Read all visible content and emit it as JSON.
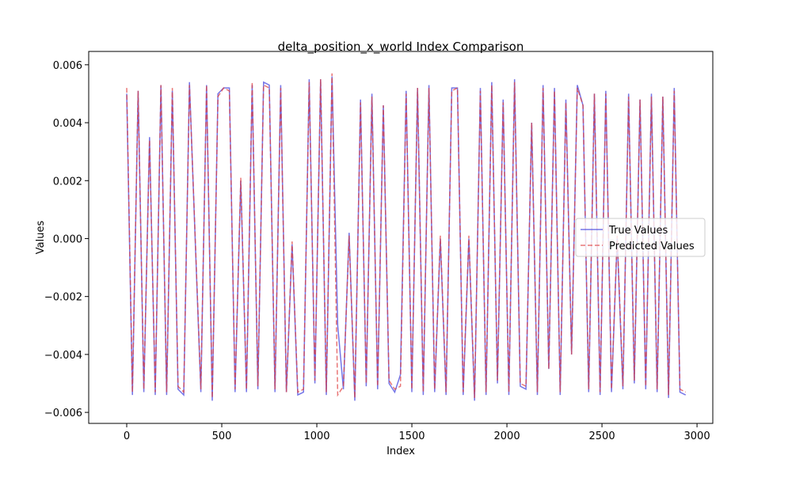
{
  "chart_data": {
    "type": "line",
    "title": "delta_position_x_world Index Comparison",
    "xlabel": "Index",
    "ylabel": "Values",
    "x": [
      0,
      30,
      60,
      90,
      120,
      150,
      180,
      210,
      240,
      270,
      300,
      330,
      360,
      390,
      420,
      450,
      480,
      510,
      540,
      570,
      600,
      630,
      660,
      690,
      720,
      750,
      780,
      810,
      840,
      870,
      900,
      930,
      960,
      990,
      1020,
      1050,
      1080,
      1110,
      1140,
      1170,
      1200,
      1230,
      1260,
      1290,
      1320,
      1350,
      1380,
      1410,
      1440,
      1470,
      1500,
      1530,
      1560,
      1590,
      1620,
      1650,
      1680,
      1710,
      1740,
      1770,
      1800,
      1830,
      1860,
      1890,
      1920,
      1950,
      1980,
      2010,
      2040,
      2070,
      2100,
      2130,
      2160,
      2190,
      2220,
      2250,
      2280,
      2310,
      2340,
      2370,
      2400,
      2430,
      2460,
      2490,
      2520,
      2550,
      2580,
      2610,
      2640,
      2670,
      2700,
      2730,
      2760,
      2790,
      2820,
      2850,
      2880,
      2910,
      2940
    ],
    "series": [
      {
        "name": "True Values",
        "color": "#3b3bdd",
        "dash": false,
        "values": [
          0.005,
          -0.0054,
          0.0051,
          -0.0053,
          0.0035,
          -0.0054,
          0.0053,
          -0.0054,
          0.0051,
          -0.0052,
          -0.0054,
          0.0054,
          0.0,
          -0.0053,
          0.0053,
          -0.0056,
          0.005,
          0.0052,
          0.0052,
          -0.0053,
          0.002,
          -0.0053,
          0.0053,
          -0.0052,
          0.0054,
          0.0053,
          -0.0053,
          0.0053,
          -0.0053,
          -0.0002,
          -0.0054,
          -0.0053,
          0.0055,
          -0.005,
          0.0055,
          -0.0054,
          0.0056,
          -0.003,
          -0.0052,
          0.0002,
          -0.0056,
          0.0048,
          -0.0051,
          0.005,
          -0.0052,
          0.0046,
          -0.005,
          -0.0053,
          -0.0047,
          0.0051,
          -0.0053,
          0.0052,
          -0.0054,
          0.0053,
          -0.0053,
          0.0,
          -0.0054,
          0.0052,
          0.0052,
          -0.0054,
          0.0,
          -0.0056,
          0.0052,
          -0.0054,
          0.0054,
          -0.005,
          0.0048,
          -0.0054,
          0.0055,
          -0.0051,
          -0.0052,
          0.004,
          -0.0054,
          0.0053,
          -0.0045,
          0.0052,
          -0.0054,
          0.0048,
          -0.004,
          0.0053,
          0.0046,
          -0.0053,
          0.005,
          -0.0054,
          0.0051,
          -0.0053,
          0.0,
          -0.0052,
          0.005,
          -0.005,
          0.0048,
          -0.0052,
          0.005,
          -0.0053,
          0.0049,
          -0.0055,
          0.0052,
          -0.0053,
          -0.0054
        ]
      },
      {
        "name": "Predicted Values",
        "color": "#e03c3c",
        "dash": true,
        "values": [
          0.0052,
          -0.0053,
          0.0051,
          -0.0052,
          0.0034,
          -0.0053,
          0.0053,
          -0.0053,
          0.0052,
          -0.0051,
          -0.0053,
          0.0053,
          0.0001,
          -0.0052,
          0.0053,
          -0.0055,
          0.0049,
          0.0052,
          0.0051,
          -0.0052,
          0.0021,
          -0.0052,
          0.0054,
          -0.0051,
          0.0053,
          0.0052,
          -0.0052,
          0.0052,
          -0.0053,
          -0.0001,
          -0.0053,
          -0.0052,
          0.0054,
          -0.0049,
          0.0055,
          -0.0053,
          0.0057,
          -0.0054,
          -0.0051,
          0.0001,
          -0.0055,
          0.0047,
          -0.005,
          0.0049,
          -0.0051,
          0.0046,
          -0.0049,
          -0.0052,
          -0.0051,
          0.005,
          -0.0052,
          0.0052,
          -0.0053,
          0.0052,
          -0.0052,
          0.0001,
          -0.0053,
          0.0051,
          0.0052,
          -0.0053,
          0.0001,
          -0.0055,
          0.0051,
          -0.0053,
          0.0053,
          -0.0049,
          0.0047,
          -0.0053,
          0.0054,
          -0.005,
          -0.0051,
          0.004,
          -0.0053,
          0.0052,
          -0.0045,
          0.0051,
          -0.0053,
          0.0047,
          -0.004,
          0.0052,
          0.0046,
          -0.0052,
          0.005,
          -0.0053,
          0.005,
          -0.0052,
          0.0001,
          -0.0051,
          0.0049,
          -0.0049,
          0.0048,
          -0.0051,
          0.0049,
          -0.0052,
          0.0049,
          -0.0054,
          0.0051,
          -0.0052,
          -0.0053
        ]
      }
    ],
    "xlim": [
      -200,
      3083
    ],
    "ylim": [
      -0.00638,
      0.00646
    ],
    "xticks": [
      0,
      500,
      1000,
      1500,
      2000,
      2500,
      3000
    ],
    "yticks": [
      {
        "value": -0.006,
        "label": "−0.006"
      },
      {
        "value": -0.004,
        "label": "−0.004"
      },
      {
        "value": -0.002,
        "label": "−0.002"
      },
      {
        "value": 0,
        "label": "0.000"
      },
      0.002,
      0.004,
      0.006
    ],
    "legend": "center right"
  }
}
